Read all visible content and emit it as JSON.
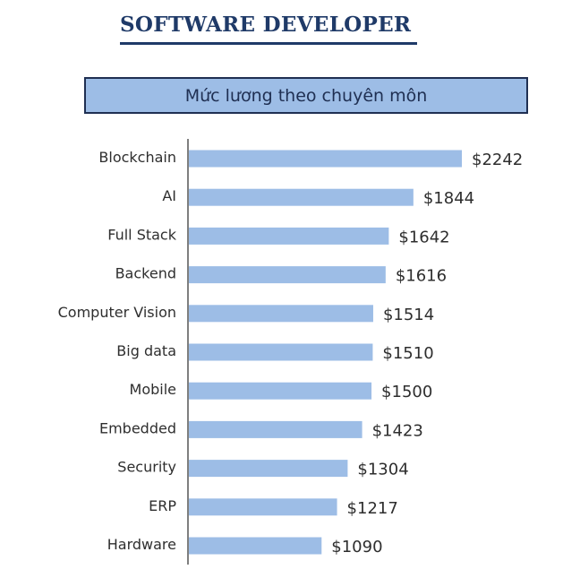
{
  "header": {
    "title": "SOFTWARE DEVELOPER",
    "subtitle": "Mức lương theo chuyên môn"
  },
  "colors": {
    "bar": "#9dbde6",
    "title": "#1f3a68",
    "axis": "#555555"
  },
  "chart_data": {
    "type": "bar",
    "orientation": "horizontal",
    "title": "Mức lương theo chuyên môn",
    "xlabel": "",
    "ylabel": "",
    "value_prefix": "$",
    "categories": [
      "Blockchain",
      "AI",
      "Full Stack",
      "Backend",
      "Computer Vision",
      "Big data",
      "Mobile",
      "Embedded",
      "Security",
      "ERP",
      "Hardware"
    ],
    "values": [
      2242,
      1844,
      1642,
      1616,
      1514,
      1510,
      1500,
      1423,
      1304,
      1217,
      1090
    ],
    "grid": false,
    "legend": "none"
  }
}
